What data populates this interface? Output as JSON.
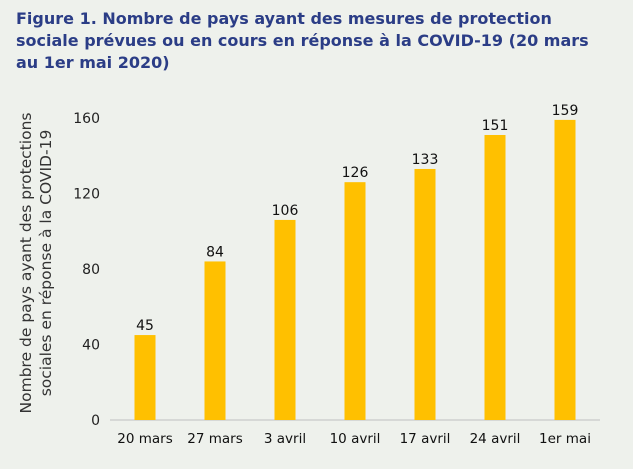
{
  "chart_data": {
    "type": "bar",
    "title": "Figure 1. Nombre de pays ayant des mesures de protection sociale prévues ou en cours en réponse à la COVID-19 (20 mars au 1er mai 2020)",
    "ylabel_line1": "Nombre de pays ayant des protections",
    "ylabel_line2": "sociales en réponse à la COVID-19",
    "xlabel": "",
    "categories": [
      "20 mars",
      "27 mars",
      "3 avril",
      "10 avril",
      "17 avril",
      "24 avril",
      "1er mai"
    ],
    "values": [
      45,
      84,
      106,
      126,
      133,
      151,
      159
    ],
    "ylim": [
      0,
      160
    ],
    "yticks": [
      0,
      40,
      80,
      120,
      160
    ],
    "grid": false,
    "bar_color": "#ffc000"
  }
}
